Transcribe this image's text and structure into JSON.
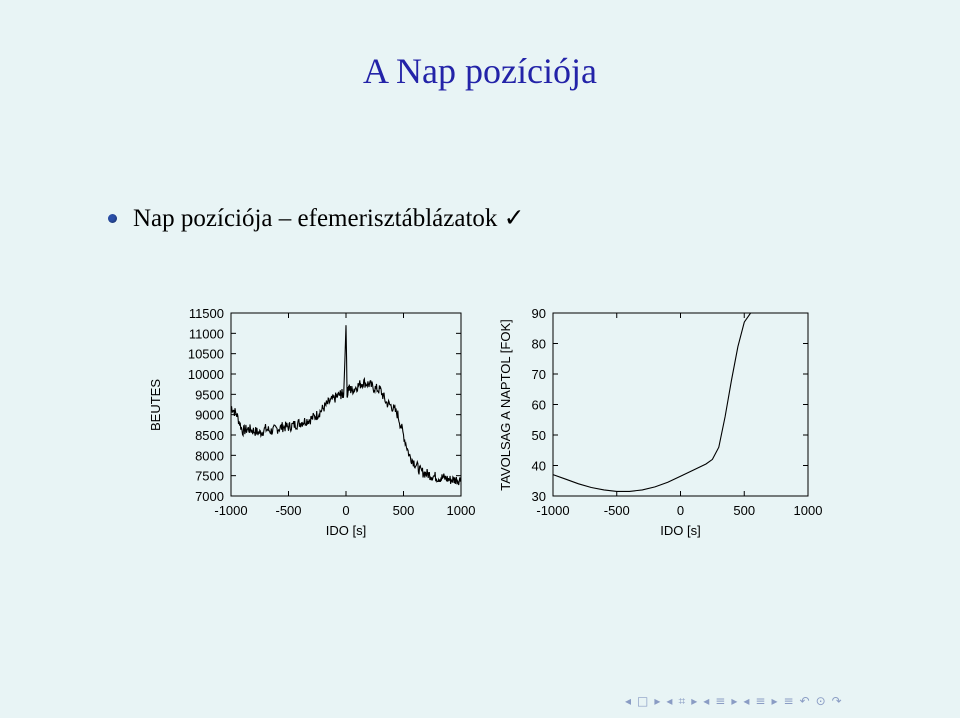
{
  "slide": {
    "title": "A Nap pozíciója",
    "bullet": "Nap pozíciója – efemerisztáblázatok ✓"
  },
  "chart_data": [
    {
      "type": "line",
      "xlabel": "IDO [s]",
      "ylabel": "BEUTES",
      "xlim": [
        -1000,
        1000
      ],
      "ylim": [
        7000,
        11500
      ],
      "xticks": [
        "-1000",
        "-500",
        "0",
        "500",
        "1000"
      ],
      "yticks": [
        "7000",
        "7500",
        "8000",
        "8500",
        "9000",
        "9500",
        "10000",
        "10500",
        "11000",
        "11500"
      ],
      "series": [
        {
          "x": [
            -1000,
            -950,
            -900,
            -850,
            -800,
            -750,
            -700,
            -650,
            -600,
            -550,
            -500,
            -450,
            -400,
            -350,
            -300,
            -250,
            -200,
            -150,
            -100,
            -50,
            -20,
            0,
            10,
            20,
            50,
            100,
            150,
            200,
            250,
            300,
            350,
            400,
            450,
            500,
            550,
            600,
            650,
            700,
            750,
            800,
            850,
            900,
            950,
            1000
          ],
          "y": [
            9200,
            9000,
            8600,
            8650,
            8600,
            8550,
            8650,
            8600,
            8650,
            8700,
            8700,
            8750,
            8800,
            8850,
            8900,
            9000,
            9150,
            9300,
            9400,
            9500,
            9500,
            11200,
            9500,
            9650,
            9600,
            9700,
            9800,
            9750,
            9650,
            9600,
            9300,
            9200,
            9000,
            8500,
            8000,
            7800,
            7600,
            7550,
            7500,
            7450,
            7450,
            7400,
            7400,
            7400
          ]
        }
      ]
    },
    {
      "type": "line",
      "xlabel": "IDO [s]",
      "ylabel": "TAVOLSAG A NAPTOL [FOK]",
      "xlim": [
        -1000,
        1000
      ],
      "ylim": [
        30,
        90
      ],
      "xticks": [
        "-1000",
        "-500",
        "0",
        "500",
        "1000"
      ],
      "yticks": [
        "30",
        "40",
        "50",
        "60",
        "70",
        "80",
        "90"
      ],
      "series": [
        {
          "x": [
            -1000,
            -900,
            -800,
            -700,
            -600,
            -500,
            -400,
            -300,
            -200,
            -100,
            0,
            100,
            200,
            250,
            300,
            350,
            400,
            450,
            500,
            550,
            600,
            650,
            700,
            750,
            800,
            850,
            900,
            950,
            1000
          ],
          "y": [
            37,
            35.5,
            34,
            32.8,
            32,
            31.5,
            31.5,
            32,
            33,
            34.5,
            36.5,
            38.5,
            40.5,
            42,
            46,
            56,
            68,
            79,
            87,
            90,
            90,
            90,
            90,
            90,
            90,
            90,
            90,
            90,
            90
          ]
        }
      ]
    }
  ],
  "nav": {
    "icons": [
      "◂",
      "□",
      "▸",
      "◂",
      "⌗",
      "▸",
      "◂",
      "≡",
      "▸",
      "◂",
      "≡",
      "▸",
      "≡",
      "↶",
      "⊙",
      "↷"
    ]
  }
}
